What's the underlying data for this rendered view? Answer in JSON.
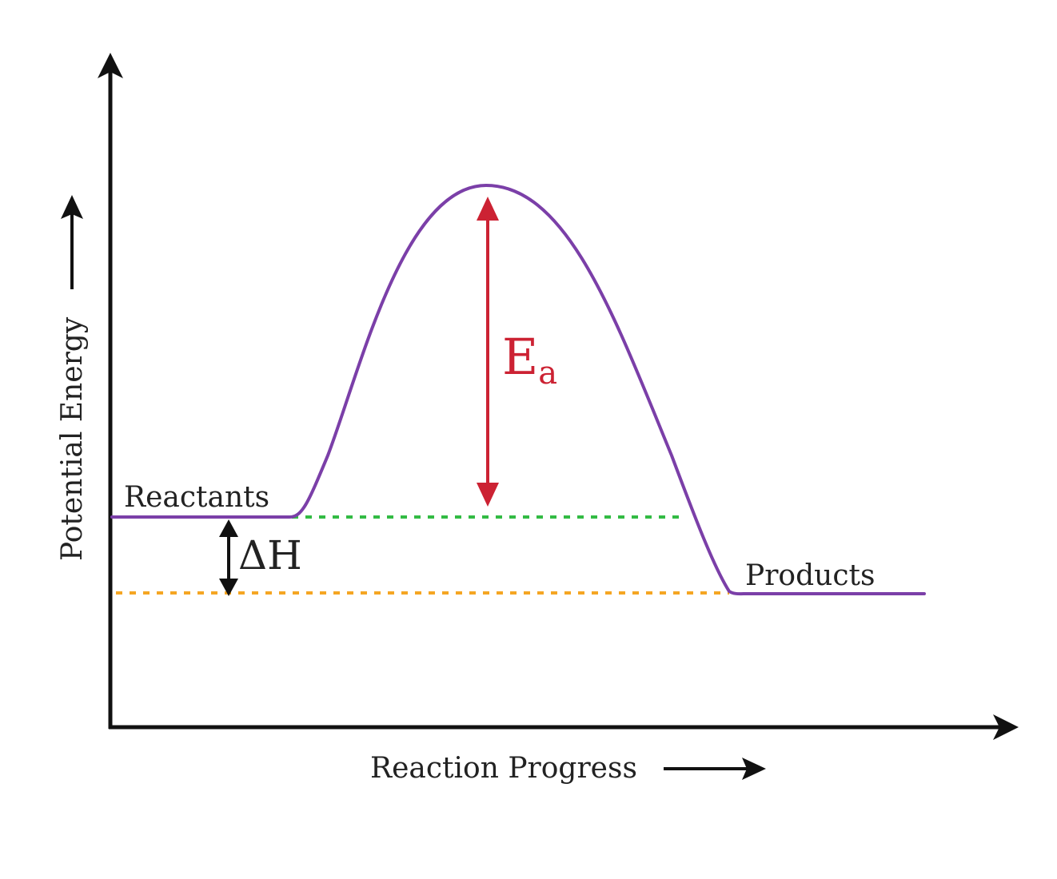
{
  "diagram": {
    "y_axis_label": "Potential Energy",
    "x_axis_label": "Reaction Progress",
    "reactants_label": "Reactants",
    "products_label": "Products",
    "activation_energy_symbol": "E",
    "activation_energy_subscript": "a",
    "enthalpy_change_label": "ΔH"
  },
  "colors": {
    "curve": "#7b3fa8",
    "activation_energy": "#cc2233",
    "reactant_level_line": "#33bb44",
    "product_level_line": "#f5a623",
    "axes": "#111111",
    "text": "#222222"
  }
}
